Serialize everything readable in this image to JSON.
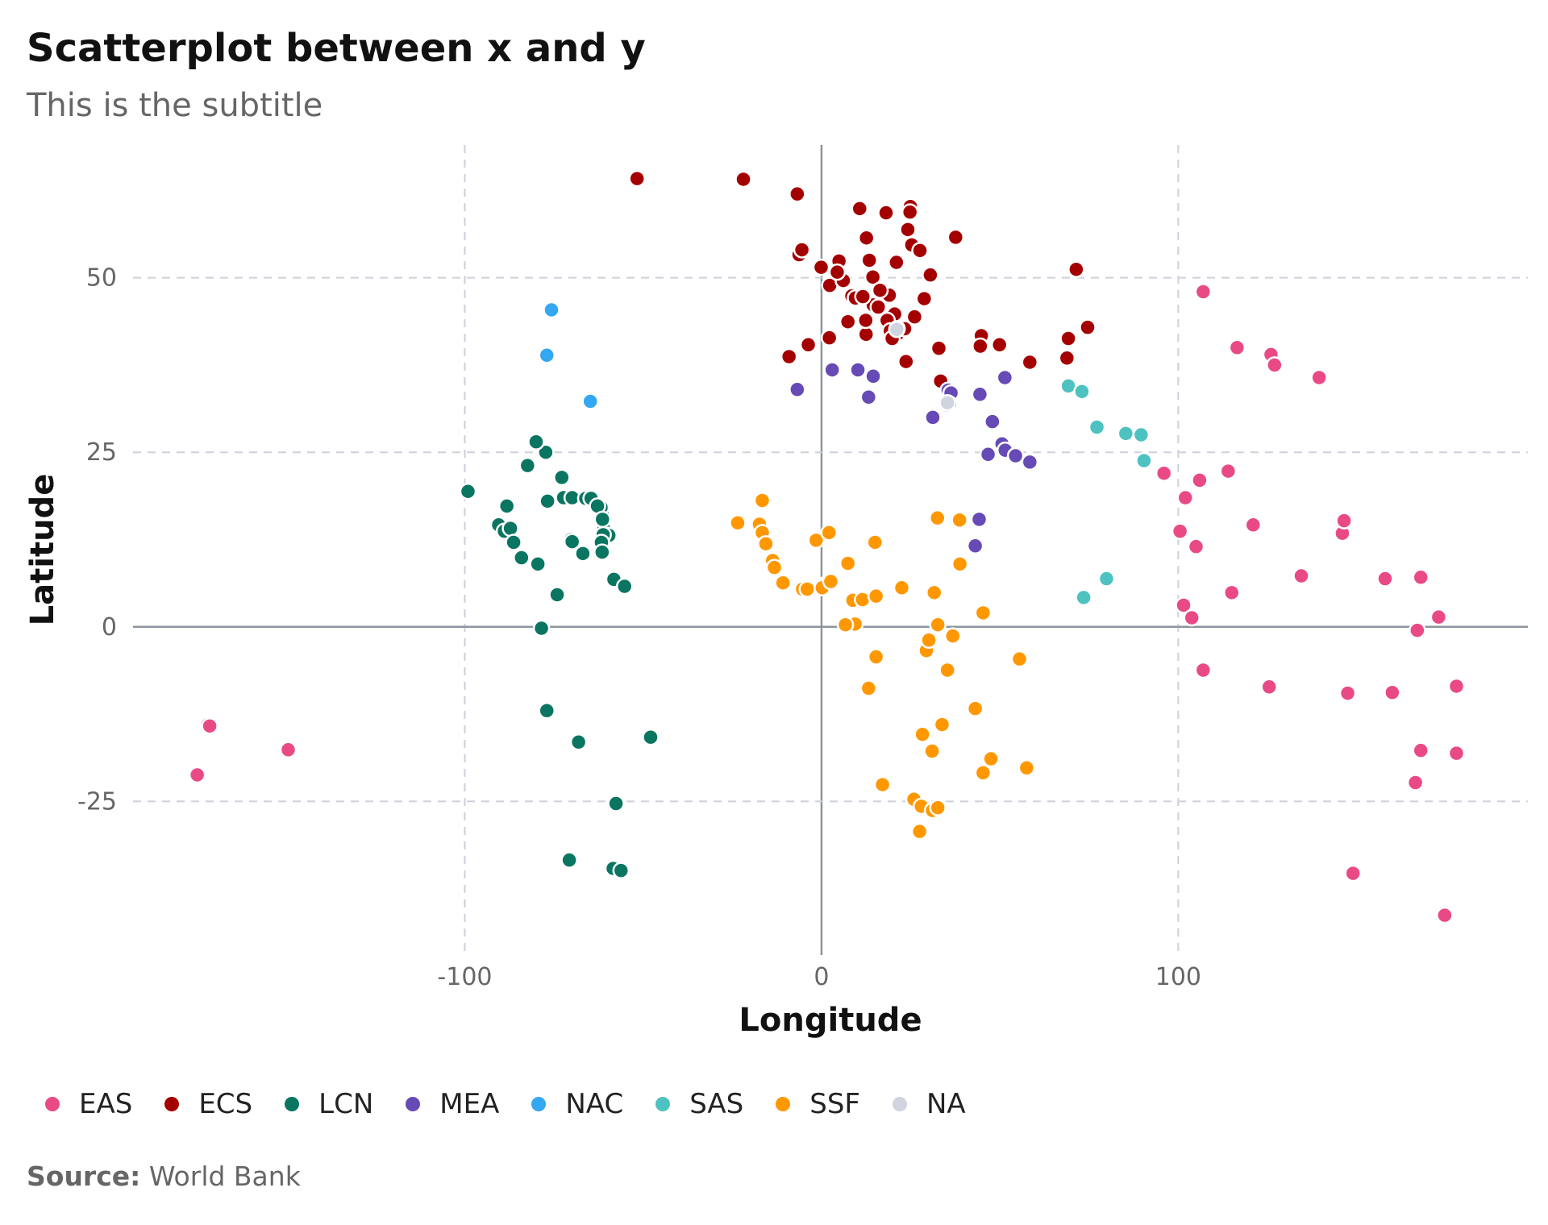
{
  "chart_data": {
    "type": "scatter",
    "title": "Scatterplot between x and y",
    "subtitle": "This is the subtitle",
    "xlabel": "Longitude",
    "ylabel": "Latitude",
    "xlim": [
      -193,
      198
    ],
    "ylim": [
      -47,
      69
    ],
    "xticks": [
      -100,
      0,
      100
    ],
    "yticks": [
      -25,
      0,
      25,
      50
    ],
    "grid": true,
    "legend_position": "bottom",
    "source_label": "Source:",
    "source_text": "World Bank",
    "series": [
      {
        "name": "EAS",
        "color": "#e94a86",
        "points": [
          [
            -172,
            -14
          ],
          [
            -171.5,
            -14.2
          ],
          [
            -175,
            -21.2
          ],
          [
            -149.5,
            -17.6
          ],
          [
            107,
            48
          ],
          [
            116.5,
            40
          ],
          [
            126,
            39
          ],
          [
            127,
            37.5
          ],
          [
            139.5,
            35.7
          ],
          [
            96,
            22
          ],
          [
            102,
            18.5
          ],
          [
            106,
            21
          ],
          [
            114,
            22.3
          ],
          [
            121,
            14.6
          ],
          [
            100.5,
            13.7
          ],
          [
            105,
            11.5
          ],
          [
            134.5,
            7.3
          ],
          [
            115,
            4.9
          ],
          [
            101.5,
            3.1
          ],
          [
            103.8,
            1.3
          ],
          [
            107,
            -6.2
          ],
          [
            125.5,
            -8.6
          ],
          [
            147.5,
            -9.5
          ],
          [
            160,
            -9.4
          ],
          [
            146,
            13.4
          ],
          [
            146.5,
            15.2
          ],
          [
            158,
            6.9
          ],
          [
            168,
            7.1
          ],
          [
            173,
            1.4
          ],
          [
            167,
            -0.5
          ],
          [
            178,
            -8.5
          ],
          [
            166.5,
            -22.3
          ],
          [
            168,
            -17.7
          ],
          [
            178,
            -18.1
          ],
          [
            149,
            -35.3
          ],
          [
            174.7,
            -41.3
          ]
        ]
      },
      {
        "name": "ECS",
        "color": "#a50000",
        "points": [
          [
            -51.7,
            64.2
          ],
          [
            -21.9,
            64.1
          ],
          [
            -6.8,
            62
          ],
          [
            10.7,
            59.9
          ],
          [
            18.1,
            59.3
          ],
          [
            24.9,
            60.2
          ],
          [
            24.8,
            59.4
          ],
          [
            37.6,
            55.8
          ],
          [
            24.2,
            56.9
          ],
          [
            12.6,
            55.7
          ],
          [
            25.3,
            54.7
          ],
          [
            27.6,
            53.9
          ],
          [
            -6.3,
            53.3
          ],
          [
            -5.5,
            54
          ],
          [
            4.9,
            52.4
          ],
          [
            -0.1,
            51.5
          ],
          [
            13.4,
            52.5
          ],
          [
            21,
            52.2
          ],
          [
            2.3,
            48.9
          ],
          [
            6.1,
            49.6
          ],
          [
            4.4,
            50.8
          ],
          [
            8.5,
            47.4
          ],
          [
            9.5,
            47.1
          ],
          [
            14.4,
            50.1
          ],
          [
            17.1,
            48.1
          ],
          [
            19,
            47.5
          ],
          [
            16.4,
            48.2
          ],
          [
            14.5,
            46.1
          ],
          [
            15.9,
            45.8
          ],
          [
            12.5,
            41.9
          ],
          [
            20.5,
            44.8
          ],
          [
            18.4,
            43.9
          ],
          [
            19.3,
            42.4
          ],
          [
            21.4,
            42
          ],
          [
            26.1,
            44.4
          ],
          [
            28.8,
            47
          ],
          [
            30.5,
            50.4
          ],
          [
            23.3,
            42.7
          ],
          [
            19.8,
            41.3
          ],
          [
            23.7,
            38
          ],
          [
            2.2,
            41.4
          ],
          [
            -3.7,
            40.4
          ],
          [
            -9.1,
            38.7
          ],
          [
            32.9,
            39.9
          ],
          [
            33.4,
            35.2
          ],
          [
            44.8,
            41.7
          ],
          [
            44.5,
            40.2
          ],
          [
            49.9,
            40.4
          ],
          [
            58.4,
            37.9
          ],
          [
            69.2,
            41.3
          ],
          [
            71.4,
            51.2
          ],
          [
            74.6,
            42.9
          ],
          [
            68.8,
            38.5
          ],
          [
            12.4,
            43.9
          ],
          [
            7.4,
            43.7
          ],
          [
            11.6,
            47.3
          ],
          [
            21.2,
            42.7
          ]
        ]
      },
      {
        "name": "LCN",
        "color": "#0a7561",
        "points": [
          [
            -99.1,
            19.4
          ],
          [
            -90.5,
            14.6
          ],
          [
            -88.9,
            13.7
          ],
          [
            -87.2,
            14.1
          ],
          [
            -86.3,
            12.1
          ],
          [
            -84.1,
            9.9
          ],
          [
            -79.5,
            9
          ],
          [
            -88.2,
            17.3
          ],
          [
            -82.4,
            23.1
          ],
          [
            -77.3,
            25
          ],
          [
            -76.8,
            18
          ],
          [
            -72.3,
            18.5
          ],
          [
            -69.9,
            18.5
          ],
          [
            -66.1,
            18.4
          ],
          [
            -61.5,
            16.3
          ],
          [
            -61.3,
            15.3
          ],
          [
            -61,
            14
          ],
          [
            -59.6,
            13.1
          ],
          [
            -61.2,
            13.2
          ],
          [
            -61.7,
            12.1
          ],
          [
            -61.5,
            10.7
          ],
          [
            -66.9,
            10.5
          ],
          [
            -74.1,
            4.6
          ],
          [
            -58.2,
            6.8
          ],
          [
            -55.2,
            5.8
          ],
          [
            -78.5,
            -0.2
          ],
          [
            -77,
            -12
          ],
          [
            -68.1,
            -16.5
          ],
          [
            -47.9,
            -15.8
          ],
          [
            -57.6,
            -25.3
          ],
          [
            -70.7,
            -33.4
          ],
          [
            -58.4,
            -34.6
          ],
          [
            -56.2,
            -34.9
          ],
          [
            -82.4,
            23.1
          ],
          [
            -72.8,
            21.4
          ],
          [
            -64.6,
            18.4
          ],
          [
            -61.8,
            17.1
          ],
          [
            -62.8,
            17.3
          ],
          [
            -80,
            26.5
          ],
          [
            -70.2,
            12.5
          ],
          [
            -69.9,
            12.2
          ],
          [
            -61.4,
            15.4
          ]
        ]
      },
      {
        "name": "MEA",
        "color": "#664ab6",
        "points": [
          [
            -6.8,
            34
          ],
          [
            3,
            36.8
          ],
          [
            10.2,
            36.8
          ],
          [
            13.2,
            32.9
          ],
          [
            14.5,
            35.9
          ],
          [
            31.2,
            30
          ],
          [
            35.5,
            33.9
          ],
          [
            36.3,
            33.5
          ],
          [
            35.9,
            31.9
          ],
          [
            35.2,
            31.8
          ],
          [
            44.4,
            33.3
          ],
          [
            51.4,
            35.7
          ],
          [
            47.9,
            29.4
          ],
          [
            50.6,
            26.2
          ],
          [
            51.5,
            25.3
          ],
          [
            54.4,
            24.5
          ],
          [
            58.4,
            23.6
          ],
          [
            46.7,
            24.7
          ],
          [
            44.2,
            15.4
          ],
          [
            43.1,
            11.6
          ]
        ]
      },
      {
        "name": "NAC",
        "color": "#34a7f2",
        "points": [
          [
            -75.7,
            45.4
          ],
          [
            -77,
            38.9
          ],
          [
            -64.8,
            32.3
          ]
        ]
      },
      {
        "name": "SAS",
        "color": "#4ec2c0",
        "points": [
          [
            69.2,
            34.5
          ],
          [
            73,
            33.7
          ],
          [
            77.2,
            28.6
          ],
          [
            85.3,
            27.7
          ],
          [
            89.6,
            27.5
          ],
          [
            90.4,
            23.8
          ],
          [
            73.5,
            4.2
          ],
          [
            79.9,
            6.9
          ]
        ]
      },
      {
        "name": "SSF",
        "color": "#ff9800",
        "points": [
          [
            -17.4,
            14.7
          ],
          [
            -16.6,
            13.5
          ],
          [
            -15.6,
            11.9
          ],
          [
            -13.7,
            9.5
          ],
          [
            -13.2,
            8.5
          ],
          [
            -10.8,
            6.3
          ],
          [
            -5.3,
            5.4
          ],
          [
            -4,
            5.4
          ],
          [
            -1.5,
            12.4
          ],
          [
            2.1,
            13.5
          ],
          [
            1.2,
            6.1
          ],
          [
            0.2,
            5.6
          ],
          [
            7.5,
            9.1
          ],
          [
            8.8,
            3.8
          ],
          [
            11.5,
            3.9
          ],
          [
            9.4,
            0.4
          ],
          [
            6.7,
            0.3
          ],
          [
            15.3,
            4.4
          ],
          [
            15,
            12.1
          ],
          [
            15.3,
            -4.3
          ],
          [
            13.2,
            -8.8
          ],
          [
            17.1,
            -22.6
          ],
          [
            25.9,
            -24.7
          ],
          [
            28,
            -25.7
          ],
          [
            31.1,
            -26.3
          ],
          [
            32.6,
            -25.9
          ],
          [
            27.5,
            -29.3
          ],
          [
            28.3,
            -15.4
          ],
          [
            33.8,
            -14
          ],
          [
            31,
            -17.8
          ],
          [
            35.3,
            -6.2
          ],
          [
            29.4,
            -3.4
          ],
          [
            30.1,
            -1.9
          ],
          [
            32.6,
            0.3
          ],
          [
            36.8,
            -1.3
          ],
          [
            32.5,
            15.6
          ],
          [
            38.7,
            15.3
          ],
          [
            38.8,
            9
          ],
          [
            43.1,
            -11.7
          ],
          [
            45.3,
            2
          ],
          [
            47.5,
            -18.9
          ],
          [
            55.5,
            -4.6
          ],
          [
            57.5,
            -20.2
          ],
          [
            -23.5,
            14.9
          ],
          [
            -16.6,
            18.1
          ],
          [
            7.4,
            9.1
          ],
          [
            2.6,
            6.5
          ],
          [
            31.6,
            4.9
          ],
          [
            22.5,
            5.6
          ],
          [
            45.3,
            -20.9
          ]
        ]
      },
      {
        "name": "NA",
        "color": "#cfd4de",
        "points": [
          [
            21.1,
            42.6
          ],
          [
            35.3,
            32.1
          ]
        ]
      }
    ]
  }
}
